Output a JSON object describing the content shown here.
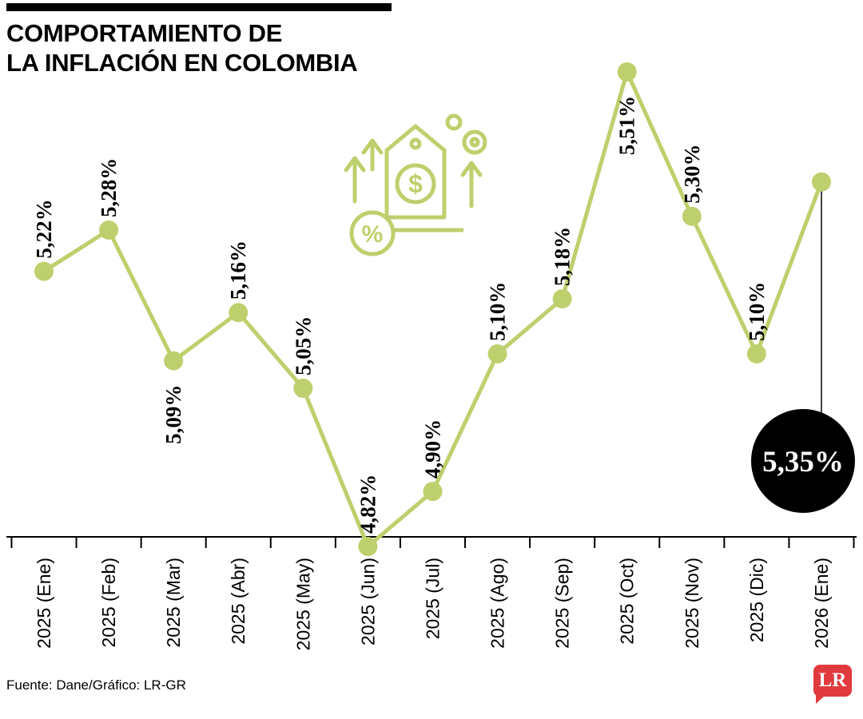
{
  "title": {
    "line1": "COMPORTAMIENTO DE",
    "line2": "LA INFLACIÓN EN COLOMBIA"
  },
  "footer": {
    "source": "Fuente: Dane/Gráfico: LR-GR",
    "logo": "LR"
  },
  "colors": {
    "line": "#bdd06d",
    "axis": "#000000",
    "highlight_bg": "#000000",
    "highlight_text": "#ffffff",
    "logo_red": "#e03a3e"
  },
  "chart_data": {
    "type": "line",
    "title": "Comportamiento de la inflación en Colombia",
    "x": [
      "2025 (Ene)",
      "2025 (Feb)",
      "2025 (Mar)",
      "2025 (Abr)",
      "2025 (May)",
      "2025 (Jun)",
      "2025 (Jul)",
      "2025 (Ago)",
      "2025 (Sep)",
      "2025 (Oct)",
      "2025 (Nov)",
      "2025 (Dic)",
      "2026 (Ene)"
    ],
    "values": [
      5.22,
      5.28,
      5.09,
      5.16,
      5.05,
      4.82,
      4.9,
      5.1,
      5.18,
      5.51,
      5.3,
      5.1,
      5.35
    ],
    "labels": [
      "5,22%",
      "5,28%",
      "5,09%",
      "5,16%",
      "5,05%",
      "4,82%",
      "4,90%",
      "5,10%",
      "5,18%",
      "5,51%",
      "5,30%",
      "5,10%",
      "5,35%"
    ],
    "label_side": [
      "above",
      "above",
      "below",
      "above",
      "above",
      "above",
      "above",
      "above",
      "above",
      "below",
      "above",
      "above",
      "highlight"
    ],
    "highlight_index": 12,
    "highlight_label": "5,35%",
    "ylim": [
      4.82,
      5.51
    ],
    "grid": false,
    "legend": "none",
    "unit": "%"
  }
}
